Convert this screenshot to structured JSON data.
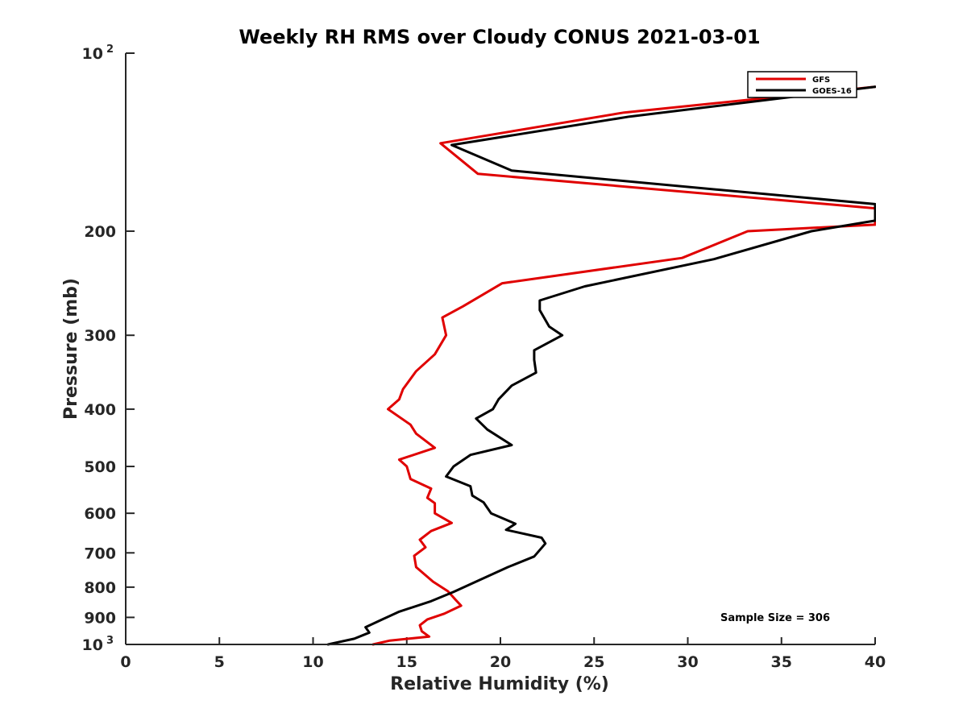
{
  "chart_data": {
    "type": "line",
    "title": "Weekly RH RMS over Cloudy CONUS 2021-03-01",
    "xlabel": "Relative Humidity (%)",
    "ylabel": "Pressure (mb)",
    "xlim": [
      0,
      40
    ],
    "ylim": [
      100,
      1000
    ],
    "y_scale": "log",
    "y_reversed": true,
    "x_ticks": [
      "0",
      "5",
      "10",
      "15",
      "20",
      "25",
      "30",
      "35",
      "40"
    ],
    "y_ticks": [
      {
        "value": 100,
        "label": "10",
        "sup": "2"
      },
      {
        "value": 200,
        "label": "200"
      },
      {
        "value": 300,
        "label": "300"
      },
      {
        "value": 400,
        "label": "400"
      },
      {
        "value": 500,
        "label": "500"
      },
      {
        "value": 600,
        "label": "600"
      },
      {
        "value": 700,
        "label": "700"
      },
      {
        "value": 800,
        "label": "800"
      },
      {
        "value": 900,
        "label": "900"
      },
      {
        "value": 1000,
        "label": "10",
        "sup": "3"
      }
    ],
    "legend_position": "top-right",
    "annotation": "Sample Size = 306",
    "series": [
      {
        "name": "GFS",
        "color": "#e00000",
        "points": [
          [
            40,
            114
          ],
          [
            26.6,
            126
          ],
          [
            16.8,
            142
          ],
          [
            18.8,
            160
          ],
          [
            40,
            183
          ],
          [
            40,
            195
          ],
          [
            33.2,
            200
          ],
          [
            29.7,
            222
          ],
          [
            20.1,
            245
          ],
          [
            18.0,
            268
          ],
          [
            16.9,
            280
          ],
          [
            17.1,
            300
          ],
          [
            16.5,
            323
          ],
          [
            15.5,
            345
          ],
          [
            14.8,
            370
          ],
          [
            14.6,
            385
          ],
          [
            14.0,
            400
          ],
          [
            15.2,
            425
          ],
          [
            15.5,
            440
          ],
          [
            16.5,
            465
          ],
          [
            14.6,
            487
          ],
          [
            15.0,
            500
          ],
          [
            15.2,
            525
          ],
          [
            16.3,
            545
          ],
          [
            16.1,
            565
          ],
          [
            16.5,
            577
          ],
          [
            16.5,
            600
          ],
          [
            17.4,
            623
          ],
          [
            16.3,
            643
          ],
          [
            15.7,
            665
          ],
          [
            16.0,
            685
          ],
          [
            15.4,
            708
          ],
          [
            15.5,
            740
          ],
          [
            16.4,
            783
          ],
          [
            17.2,
            813
          ],
          [
            17.6,
            840
          ],
          [
            17.9,
            860
          ],
          [
            17.0,
            887
          ],
          [
            16.1,
            907
          ],
          [
            15.7,
            928
          ],
          [
            15.8,
            950
          ],
          [
            16.2,
            970
          ],
          [
            14.1,
            985
          ],
          [
            13.2,
            1000
          ]
        ]
      },
      {
        "name": "GOES-16",
        "color": "#000000",
        "points": [
          [
            40,
            114
          ],
          [
            26.9,
            128
          ],
          [
            17.4,
            143
          ],
          [
            20.6,
            158
          ],
          [
            40,
            180
          ],
          [
            40,
            192
          ],
          [
            36.6,
            200
          ],
          [
            31.4,
            223
          ],
          [
            24.5,
            248
          ],
          [
            22.1,
            262
          ],
          [
            22.1,
            272
          ],
          [
            22.6,
            290
          ],
          [
            23.3,
            300
          ],
          [
            21.8,
            318
          ],
          [
            21.8,
            330
          ],
          [
            21.9,
            347
          ],
          [
            20.6,
            365
          ],
          [
            19.9,
            385
          ],
          [
            19.6,
            400
          ],
          [
            18.7,
            415
          ],
          [
            19.3,
            433
          ],
          [
            20.6,
            460
          ],
          [
            18.4,
            478
          ],
          [
            17.5,
            500
          ],
          [
            17.1,
            520
          ],
          [
            18.4,
            540
          ],
          [
            18.5,
            560
          ],
          [
            19.1,
            575
          ],
          [
            19.5,
            600
          ],
          [
            20.8,
            625
          ],
          [
            20.3,
            640
          ],
          [
            22.2,
            660
          ],
          [
            22.4,
            675
          ],
          [
            21.8,
            710
          ],
          [
            20.4,
            740
          ],
          [
            18.7,
            783
          ],
          [
            17.5,
            815
          ],
          [
            16.3,
            845
          ],
          [
            14.6,
            880
          ],
          [
            13.7,
            907
          ],
          [
            12.8,
            935
          ],
          [
            13.0,
            955
          ],
          [
            12.2,
            978
          ],
          [
            10.8,
            1000
          ]
        ]
      }
    ]
  }
}
